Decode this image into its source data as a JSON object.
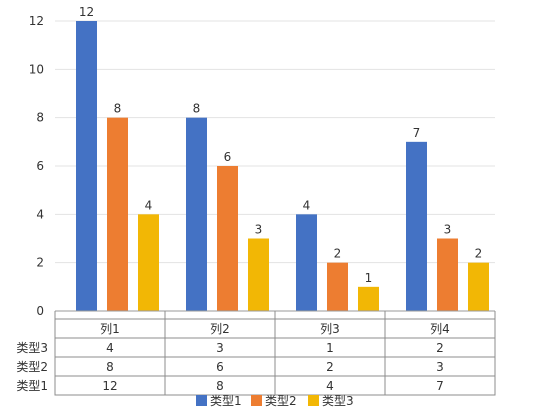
{
  "chart_data": {
    "type": "bar",
    "categories": [
      "列1",
      "列2",
      "列3",
      "列4"
    ],
    "series": [
      {
        "name": "类型1",
        "values": [
          12,
          8,
          4,
          7
        ],
        "color": "#4472C4"
      },
      {
        "name": "类型2",
        "values": [
          8,
          6,
          2,
          3
        ],
        "color": "#ED7D31"
      },
      {
        "name": "类型3",
        "values": [
          4,
          3,
          1,
          2
        ],
        "color": "#F2B705"
      }
    ],
    "ylim": [
      0,
      12
    ],
    "yticks": [
      0,
      2,
      4,
      6,
      8,
      10,
      12
    ],
    "grid": true,
    "legend": "bottom",
    "data_labels": true,
    "data_table": {
      "header": [
        "列1",
        "列2",
        "列3",
        "列4"
      ],
      "rows": [
        {
          "label": "类型3",
          "values": [
            4,
            3,
            1,
            2
          ]
        },
        {
          "label": "类型2",
          "values": [
            8,
            6,
            2,
            3
          ]
        },
        {
          "label": "类型1",
          "values": [
            12,
            8,
            4,
            7
          ]
        }
      ]
    }
  }
}
